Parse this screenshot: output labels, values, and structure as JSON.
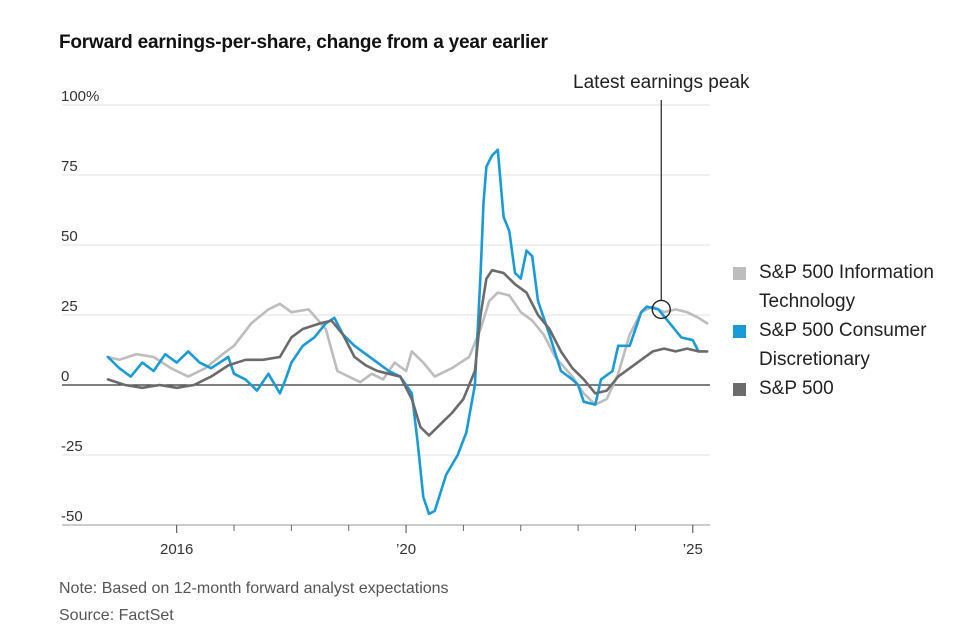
{
  "title": "Forward earnings-per-share, change from a year earlier",
  "note": "Note: Based on 12-month forward analyst expectations",
  "source": "Source: FactSet",
  "chart_data": {
    "type": "line",
    "x_range": [
      2014.75,
      2025.3
    ],
    "ylim": [
      -50,
      100
    ],
    "y_ticks": [
      100,
      75,
      50,
      25,
      0,
      -25,
      -50
    ],
    "y_tick_labels": [
      "100%",
      "75",
      "50",
      "25",
      "0",
      "-25",
      "-50"
    ],
    "x_ticks": [
      2016,
      2020,
      2025
    ],
    "x_tick_labels": [
      "2016",
      "’20",
      "’25"
    ],
    "x_minor_ticks": [
      2017,
      2018,
      2019,
      2021,
      2022,
      2023,
      2024
    ],
    "annotation": {
      "label": "Latest earnings peak",
      "x": 2024.45,
      "y": 27
    },
    "series": [
      {
        "name": "S&P 500 Information Technology",
        "color": "#bdbdbd",
        "points": [
          [
            2014.8,
            10
          ],
          [
            2015.0,
            9
          ],
          [
            2015.3,
            11
          ],
          [
            2015.6,
            10
          ],
          [
            2015.9,
            6
          ],
          [
            2016.2,
            3
          ],
          [
            2016.5,
            6
          ],
          [
            2016.8,
            11
          ],
          [
            2017.0,
            14
          ],
          [
            2017.3,
            22
          ],
          [
            2017.6,
            27
          ],
          [
            2017.8,
            29
          ],
          [
            2018.0,
            26
          ],
          [
            2018.3,
            27
          ],
          [
            2018.6,
            20
          ],
          [
            2018.8,
            5
          ],
          [
            2019.0,
            3
          ],
          [
            2019.2,
            1
          ],
          [
            2019.4,
            4
          ],
          [
            2019.6,
            2
          ],
          [
            2019.8,
            8
          ],
          [
            2020.0,
            5
          ],
          [
            2020.1,
            12
          ],
          [
            2020.3,
            8
          ],
          [
            2020.5,
            3
          ],
          [
            2020.8,
            6
          ],
          [
            2021.1,
            10
          ],
          [
            2021.3,
            20
          ],
          [
            2021.45,
            30
          ],
          [
            2021.6,
            33
          ],
          [
            2021.8,
            32
          ],
          [
            2022.0,
            26
          ],
          [
            2022.2,
            23
          ],
          [
            2022.4,
            18
          ],
          [
            2022.6,
            10
          ],
          [
            2022.9,
            3
          ],
          [
            2023.1,
            -3
          ],
          [
            2023.3,
            -7
          ],
          [
            2023.5,
            -5
          ],
          [
            2023.7,
            4
          ],
          [
            2023.9,
            18
          ],
          [
            2024.1,
            26
          ],
          [
            2024.3,
            28
          ],
          [
            2024.5,
            26
          ],
          [
            2024.7,
            27
          ],
          [
            2024.9,
            26
          ],
          [
            2025.1,
            24
          ],
          [
            2025.25,
            22
          ]
        ]
      },
      {
        "name": "S&P 500 Consumer Discretionary",
        "color": "#1a9bd7",
        "points": [
          [
            2014.8,
            10
          ],
          [
            2015.0,
            6
          ],
          [
            2015.2,
            3
          ],
          [
            2015.4,
            8
          ],
          [
            2015.6,
            5
          ],
          [
            2015.8,
            11
          ],
          [
            2016.0,
            8
          ],
          [
            2016.2,
            12
          ],
          [
            2016.4,
            8
          ],
          [
            2016.6,
            6
          ],
          [
            2016.9,
            10
          ],
          [
            2017.0,
            4
          ],
          [
            2017.2,
            2
          ],
          [
            2017.4,
            -2
          ],
          [
            2017.6,
            4
          ],
          [
            2017.8,
            -3
          ],
          [
            2017.9,
            2
          ],
          [
            2018.0,
            8
          ],
          [
            2018.2,
            14
          ],
          [
            2018.4,
            17
          ],
          [
            2018.6,
            22
          ],
          [
            2018.75,
            24
          ],
          [
            2018.9,
            18
          ],
          [
            2019.1,
            14
          ],
          [
            2019.3,
            11
          ],
          [
            2019.5,
            8
          ],
          [
            2019.7,
            5
          ],
          [
            2019.9,
            3
          ],
          [
            2020.1,
            -3
          ],
          [
            2020.2,
            -20
          ],
          [
            2020.3,
            -40
          ],
          [
            2020.4,
            -46
          ],
          [
            2020.5,
            -45
          ],
          [
            2020.7,
            -32
          ],
          [
            2020.9,
            -25
          ],
          [
            2021.05,
            -17
          ],
          [
            2021.2,
            0
          ],
          [
            2021.3,
            40
          ],
          [
            2021.35,
            65
          ],
          [
            2021.4,
            78
          ],
          [
            2021.5,
            82
          ],
          [
            2021.6,
            84
          ],
          [
            2021.7,
            60
          ],
          [
            2021.8,
            55
          ],
          [
            2021.9,
            40
          ],
          [
            2022.0,
            38
          ],
          [
            2022.1,
            48
          ],
          [
            2022.2,
            46
          ],
          [
            2022.3,
            30
          ],
          [
            2022.5,
            18
          ],
          [
            2022.7,
            5
          ],
          [
            2022.9,
            2
          ],
          [
            2023.0,
            0
          ],
          [
            2023.1,
            -6
          ],
          [
            2023.3,
            -7
          ],
          [
            2023.4,
            2
          ],
          [
            2023.6,
            5
          ],
          [
            2023.7,
            14
          ],
          [
            2023.9,
            14
          ],
          [
            2024.1,
            26
          ],
          [
            2024.2,
            28
          ],
          [
            2024.4,
            27
          ],
          [
            2024.6,
            22
          ],
          [
            2024.8,
            17
          ],
          [
            2025.0,
            16
          ],
          [
            2025.1,
            12
          ]
        ]
      },
      {
        "name": "S&P 500",
        "color": "#6b6b6b",
        "points": [
          [
            2014.8,
            2
          ],
          [
            2015.1,
            0
          ],
          [
            2015.4,
            -1
          ],
          [
            2015.7,
            0
          ],
          [
            2016.0,
            -1
          ],
          [
            2016.3,
            0
          ],
          [
            2016.6,
            3
          ],
          [
            2016.9,
            7
          ],
          [
            2017.2,
            9
          ],
          [
            2017.5,
            9
          ],
          [
            2017.8,
            10
          ],
          [
            2018.0,
            17
          ],
          [
            2018.2,
            20
          ],
          [
            2018.5,
            22
          ],
          [
            2018.7,
            23
          ],
          [
            2018.9,
            18
          ],
          [
            2019.1,
            10
          ],
          [
            2019.3,
            7
          ],
          [
            2019.5,
            5
          ],
          [
            2019.7,
            4
          ],
          [
            2019.9,
            3
          ],
          [
            2020.1,
            -5
          ],
          [
            2020.25,
            -15
          ],
          [
            2020.4,
            -18
          ],
          [
            2020.6,
            -14
          ],
          [
            2020.8,
            -10
          ],
          [
            2021.0,
            -5
          ],
          [
            2021.2,
            5
          ],
          [
            2021.3,
            25
          ],
          [
            2021.4,
            38
          ],
          [
            2021.5,
            41
          ],
          [
            2021.7,
            40
          ],
          [
            2021.9,
            36
          ],
          [
            2022.1,
            33
          ],
          [
            2022.3,
            25
          ],
          [
            2022.5,
            20
          ],
          [
            2022.7,
            12
          ],
          [
            2022.9,
            6
          ],
          [
            2023.1,
            2
          ],
          [
            2023.3,
            -3
          ],
          [
            2023.5,
            -2
          ],
          [
            2023.7,
            3
          ],
          [
            2023.9,
            6
          ],
          [
            2024.1,
            9
          ],
          [
            2024.3,
            12
          ],
          [
            2024.5,
            13
          ],
          [
            2024.7,
            12
          ],
          [
            2024.9,
            13
          ],
          [
            2025.1,
            12
          ],
          [
            2025.25,
            12
          ]
        ]
      }
    ],
    "legend_order": [
      "S&P 500 Information Technology",
      "S&P 500 Consumer Discretionary",
      "S&P 500"
    ],
    "legend_placement": "right",
    "grid": true
  }
}
